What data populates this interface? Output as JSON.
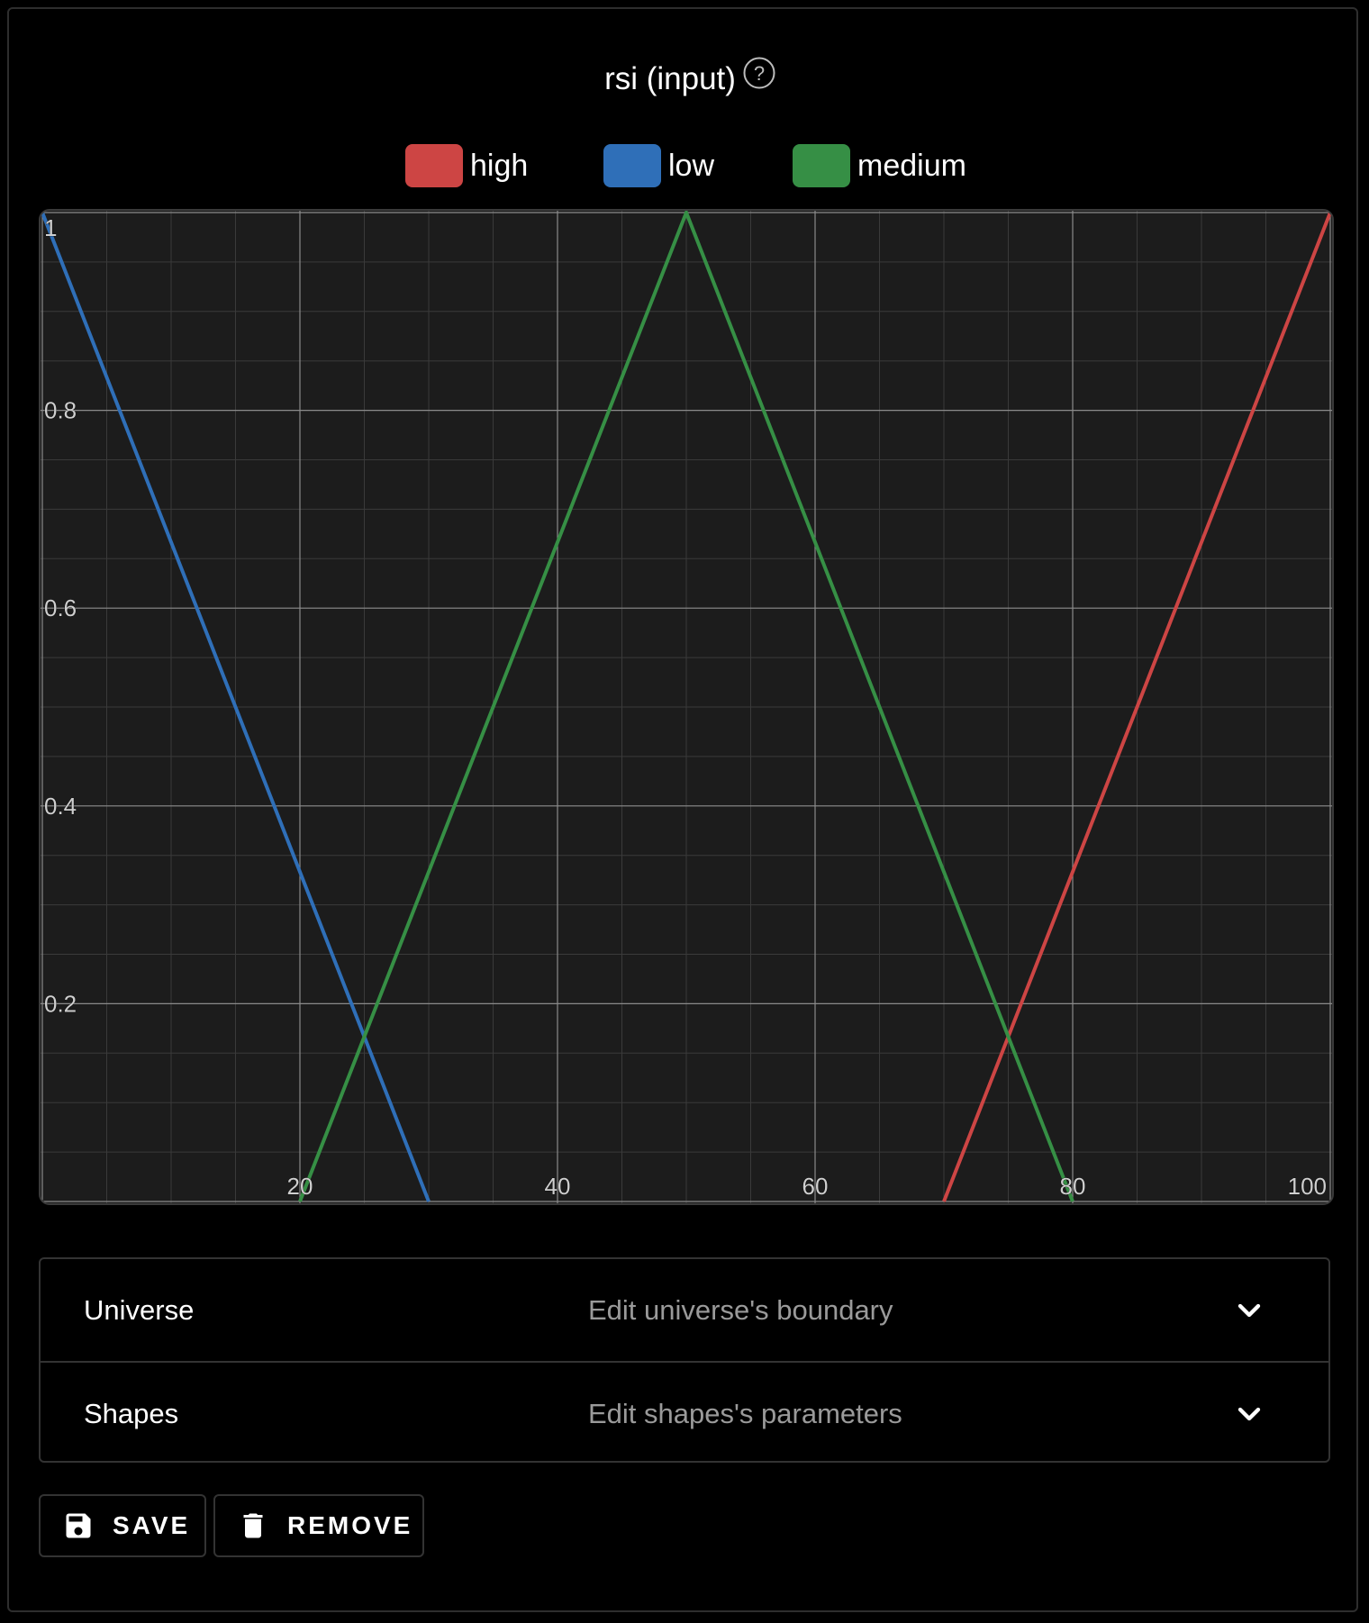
{
  "header": {
    "title": "rsi (input)",
    "help_icon": "help-circle-icon"
  },
  "legend": [
    {
      "label": "high",
      "color": "#cd4544"
    },
    {
      "label": "low",
      "color": "#2f6fb8"
    },
    {
      "label": "medium",
      "color": "#368f45"
    }
  ],
  "chart_data": {
    "type": "line",
    "title": "rsi (input)",
    "xlabel": "",
    "ylabel": "",
    "xlim": [
      0,
      100
    ],
    "ylim": [
      0,
      1
    ],
    "x_ticks": [
      "20",
      "40",
      "60",
      "80",
      "100"
    ],
    "y_ticks": [
      "0.2",
      "0.4",
      "0.6",
      "0.8",
      "1"
    ],
    "grid": true,
    "series": [
      {
        "name": "high",
        "color": "#cd4544",
        "x": [
          70,
          100
        ],
        "y": [
          0,
          1
        ]
      },
      {
        "name": "low",
        "color": "#2f6fb8",
        "x": [
          0,
          30
        ],
        "y": [
          1,
          0
        ]
      },
      {
        "name": "medium",
        "color": "#368f45",
        "x": [
          20,
          50,
          80
        ],
        "y": [
          0,
          1,
          0
        ]
      }
    ]
  },
  "accordion": [
    {
      "label": "Universe",
      "description": "Edit universe's boundary",
      "icon": "chevron-down-icon"
    },
    {
      "label": "Shapes",
      "description": "Edit shapes's parameters",
      "icon": "chevron-down-icon"
    }
  ],
  "actions": {
    "save_label": "SAVE",
    "save_icon": "save-icon",
    "remove_label": "REMOVE",
    "remove_icon": "trash-icon"
  }
}
